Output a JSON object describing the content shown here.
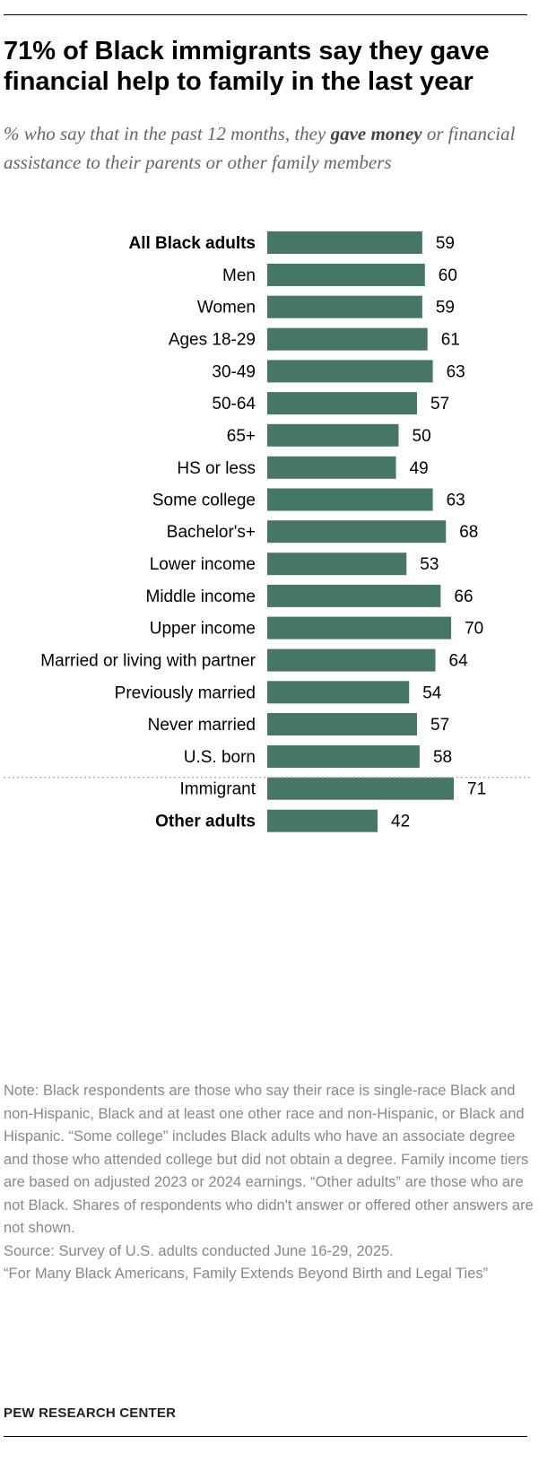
{
  "title": "71% of Black immigrants say they gave financial help to family in the last year",
  "subtitle": {
    "part1": "% who say that in the past 12 months, they ",
    "bold": "gave money",
    "part2": " or financial assistance to their parents or other family members"
  },
  "colors": {
    "bar": "#467765",
    "divider": "#b3b3b3"
  },
  "chart_data": {
    "type": "bar",
    "orientation": "horizontal",
    "categories": [
      "All Black adults",
      "Men",
      "Women",
      "Ages 18-29",
      "30-49",
      "50-64",
      "65+",
      "HS or less",
      "Some college",
      "Bachelor's+",
      "Lower income",
      "Middle income",
      "Upper income",
      "Married or living with partner",
      "Previously married",
      "Never married",
      "U.S. born",
      "Immigrant",
      "Other adults"
    ],
    "values": [
      59,
      60,
      59,
      61,
      63,
      57,
      50,
      49,
      63,
      68,
      53,
      66,
      70,
      64,
      54,
      57,
      58,
      71,
      42
    ],
    "bold_categories": [
      "All Black adults",
      "Other adults"
    ],
    "groups": [
      [
        0
      ],
      [
        1,
        2
      ],
      [
        3,
        4,
        5,
        6
      ],
      [
        7,
        8,
        9
      ],
      [
        10,
        11,
        12
      ],
      [
        13,
        14,
        15
      ],
      [
        16,
        17
      ],
      [
        18
      ]
    ],
    "divider_before": "Other adults",
    "xlim": [
      0,
      100
    ]
  },
  "note": "Note: Black respondents are those who say their race is single-race Black and non-Hispanic, Black and at least one other race and non-Hispanic, or Black and Hispanic. “Some college” includes Black adults who have an associate degree and those who attended college but did not obtain a degree. Family income tiers are based on adjusted 2023 or 2024 earnings. “Other adults” are those who are not Black. Shares of respondents who didn't answer or offered other answers are not shown.",
  "source": "Source: Survey of U.S. adults conducted June 16-29, 2025.",
  "report": "“For Many Black Americans, Family Extends Beyond Birth and Legal Ties”",
  "brand": "PEW RESEARCH CENTER"
}
